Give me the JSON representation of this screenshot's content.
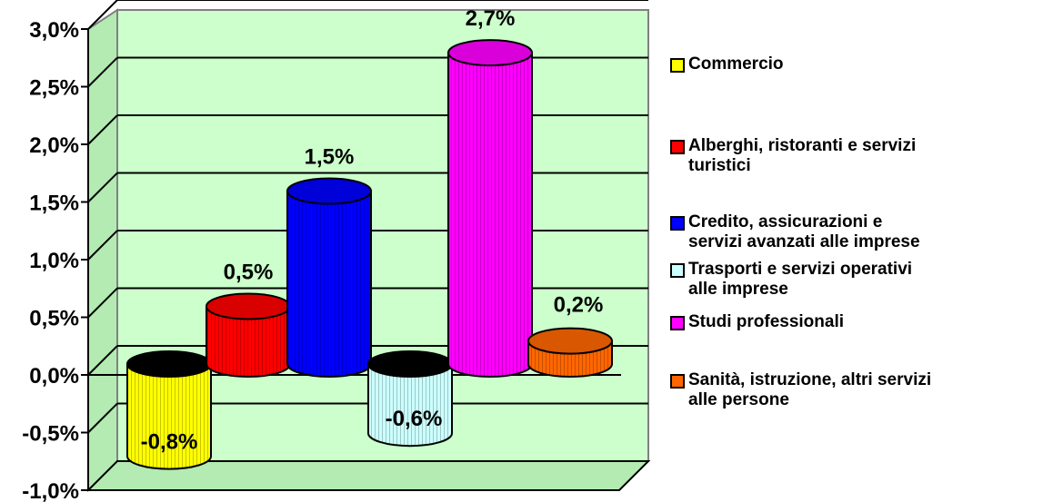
{
  "chart_data": {
    "type": "bar",
    "style": "3d-cylinder",
    "categories": [
      "Commercio",
      "Alberghi, ristoranti e servizi turistici",
      "Credito, assicurazioni e servizi avanzati alle imprese",
      "Trasporti e servizi operativi alle imprese",
      "Studi professionali",
      "Sanità, istruzione, altri servizi alle persone"
    ],
    "values": [
      -0.8,
      0.5,
      1.5,
      -0.6,
      2.7,
      0.2
    ],
    "value_labels": [
      "-0,8%",
      "0,5%",
      "1,5%",
      "-0,6%",
      "2,7%",
      "0,2%"
    ],
    "colors": [
      "#FFFF00",
      "#FF0000",
      "#0000FF",
      "#CCFFFF",
      "#FF00FF",
      "#FF6600"
    ],
    "ylim": [
      -1.0,
      3.0
    ],
    "yticks": [
      3.0,
      2.5,
      2.0,
      1.5,
      1.0,
      0.5,
      0.0,
      -0.5,
      -1.0
    ],
    "ytick_labels": [
      "3,0%",
      "2,5%",
      "2,0%",
      "1,5%",
      "1,0%",
      "0,5%",
      "0,0%",
      "-0,5%",
      "-1,0%"
    ],
    "plot_background": "#CCFFCC",
    "grid": true,
    "legend_position": "right",
    "legend": [
      {
        "lines": [
          "Commercio"
        ]
      },
      {
        "lines": [
          "Alberghi, ristoranti e servizi",
          "turistici"
        ]
      },
      {
        "lines": [
          "Credito, assicurazioni e",
          "servizi avanzati alle imprese"
        ]
      },
      {
        "lines": [
          "Trasporti e servizi operativi",
          "alle imprese"
        ]
      },
      {
        "lines": [
          "Studi professionali"
        ]
      },
      {
        "lines": [
          "Sanità, istruzione, altri servizi",
          "alle persone"
        ]
      }
    ]
  }
}
